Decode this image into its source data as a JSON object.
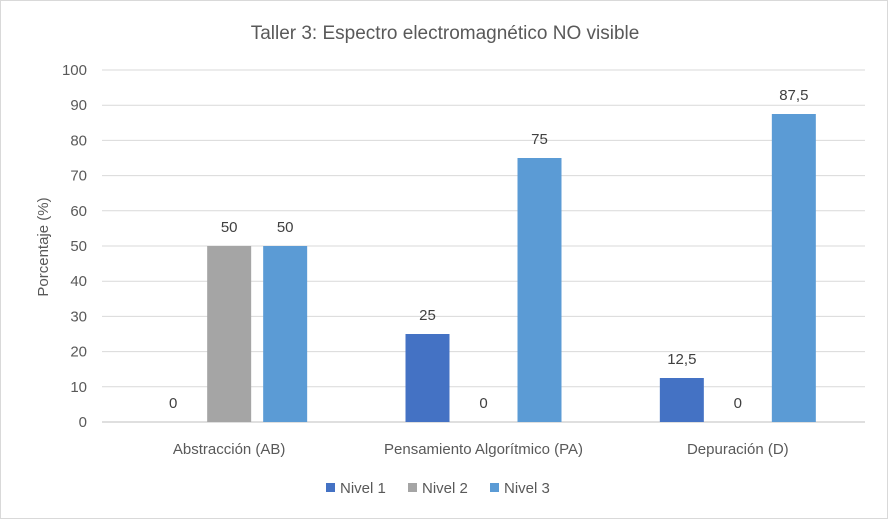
{
  "chart_data": {
    "type": "bar",
    "title": "Taller 3: Espectro electromagnético  NO visible",
    "xlabel": "",
    "ylabel": "Porcentaje (%)",
    "ylim": [
      0,
      100
    ],
    "yticks": [
      "0",
      "10",
      "20",
      "30",
      "40",
      "50",
      "60",
      "70",
      "80",
      "90",
      "100"
    ],
    "grid": true,
    "legend_position": "bottom",
    "categories": [
      "Abstracción (AB)",
      "Pensamiento Algorítmico (PA)",
      "Depuración (D)"
    ],
    "series": [
      {
        "name": "Nivel 1",
        "color": "#4472c4",
        "values": [
          0,
          25,
          12.5
        ],
        "labels": [
          "0",
          "25",
          "12,5"
        ]
      },
      {
        "name": "Nivel 2",
        "color": "#a5a5a5",
        "values": [
          50,
          0,
          0
        ],
        "labels": [
          "50",
          "0",
          "0"
        ]
      },
      {
        "name": "Nivel 3",
        "color": "#5b9bd5",
        "values": [
          50,
          75,
          87.5
        ],
        "labels": [
          "50",
          "75",
          "87,5"
        ]
      }
    ]
  }
}
